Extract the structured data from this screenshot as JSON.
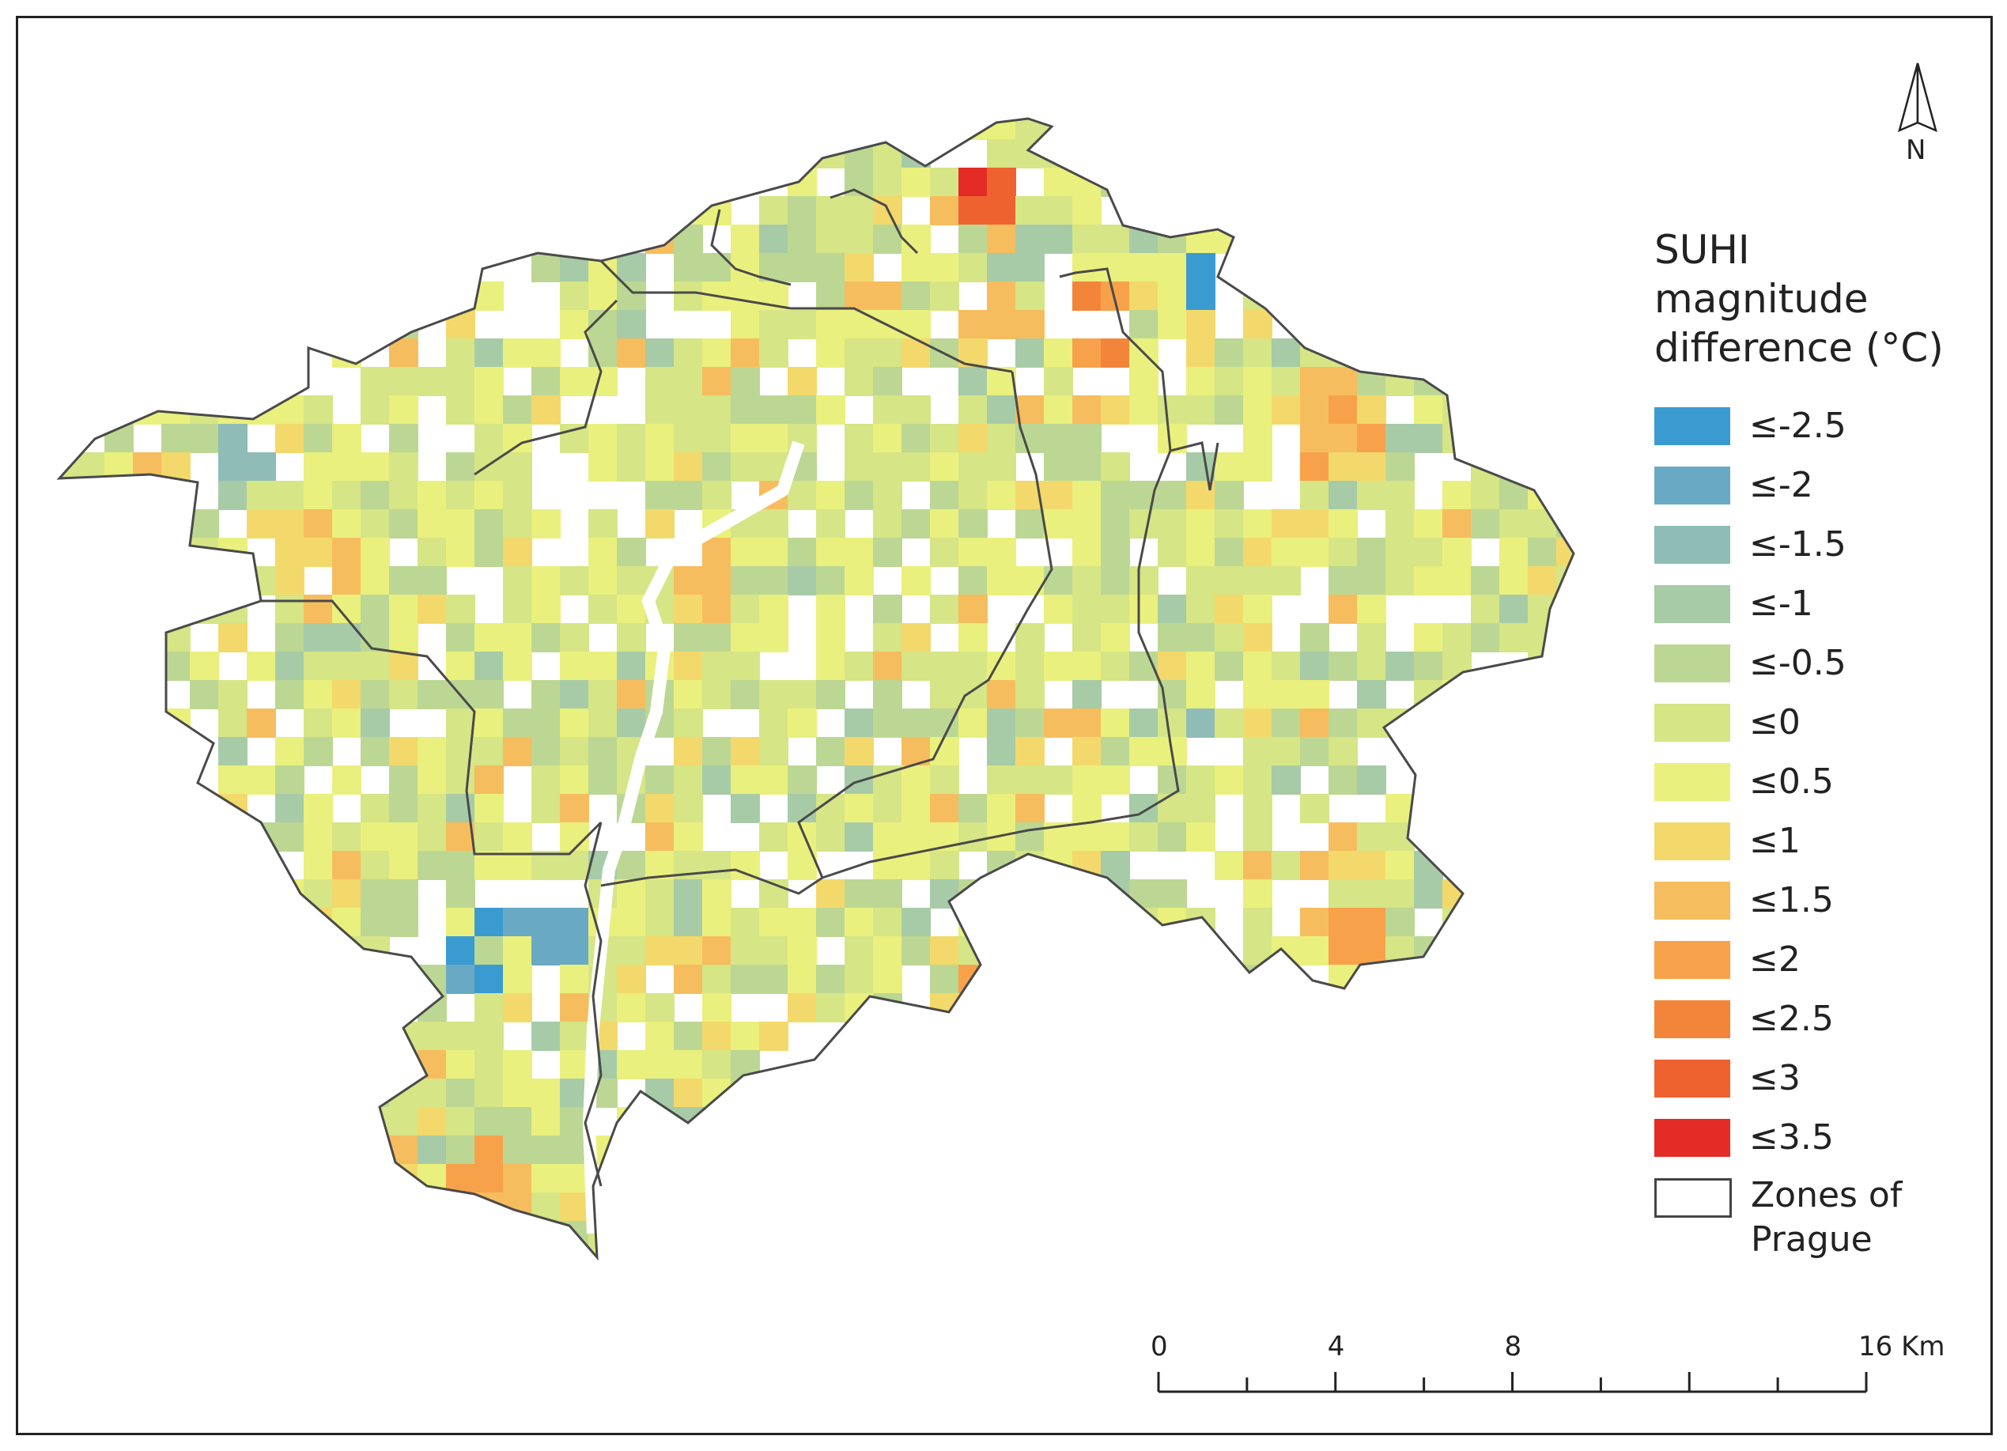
{
  "north_arrow": {
    "label": "N"
  },
  "legend": {
    "title_lines": [
      "SUHI",
      "magnitude",
      "difference (°C)"
    ],
    "classes": [
      {
        "label": "≤-2.5",
        "color": "#3a9bd1"
      },
      {
        "label": "≤-2",
        "color": "#6aa9c4"
      },
      {
        "label": "≤-1.5",
        "color": "#8fbcb6"
      },
      {
        "label": "≤-1",
        "color": "#a7cba6"
      },
      {
        "label": "≤-0.5",
        "color": "#bcd793"
      },
      {
        "label": "≤0",
        "color": "#d6e586"
      },
      {
        "label": "≤0.5",
        "color": "#eaf07d"
      },
      {
        "label": "≤1",
        "color": "#f3d96b"
      },
      {
        "label": "≤1.5",
        "color": "#f6bd5e"
      },
      {
        "label": "≤2",
        "color": "#f7a24a"
      },
      {
        "label": "≤2.5",
        "color": "#f3853a"
      },
      {
        "label": "≤3",
        "color": "#ee6230"
      },
      {
        "label": "≤3.5",
        "color": "#e42b25"
      }
    ],
    "zones_label_lines": [
      "Zones of",
      "Prague"
    ]
  },
  "scale_bar": {
    "labels": [
      "0",
      "4",
      "8",
      "16 Km"
    ],
    "values_km": [
      0,
      4,
      8,
      16
    ]
  }
}
